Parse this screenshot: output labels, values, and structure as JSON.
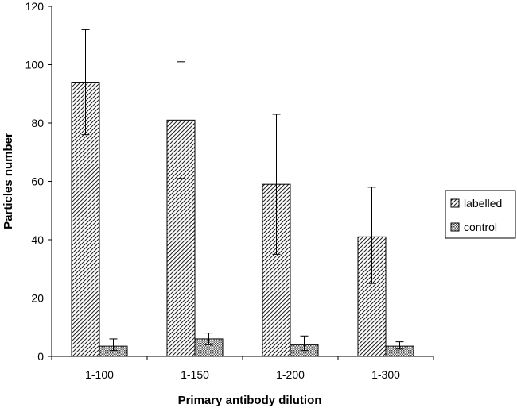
{
  "chart_data": {
    "type": "bar",
    "title": "",
    "xlabel": "Primary antibody dilution",
    "ylabel": "Particles number",
    "categories": [
      "1-100",
      "1-150",
      "1-200",
      "1-300"
    ],
    "ylim": [
      0,
      120
    ],
    "yticks": [
      0,
      20,
      40,
      60,
      80,
      100,
      120
    ],
    "grid": false,
    "legend_position": "right",
    "series": [
      {
        "name": "labelled",
        "pattern": "diagonal-hatch",
        "values": [
          94,
          81,
          59,
          41
        ],
        "error_low": [
          76,
          61,
          35,
          25
        ],
        "error_high": [
          112,
          101,
          83,
          58
        ]
      },
      {
        "name": "control",
        "pattern": "crosshatch",
        "values": [
          3.5,
          6,
          4,
          3.5
        ],
        "error_low": [
          2,
          4,
          2,
          2.5
        ],
        "error_high": [
          6,
          8,
          7,
          5
        ]
      }
    ]
  }
}
